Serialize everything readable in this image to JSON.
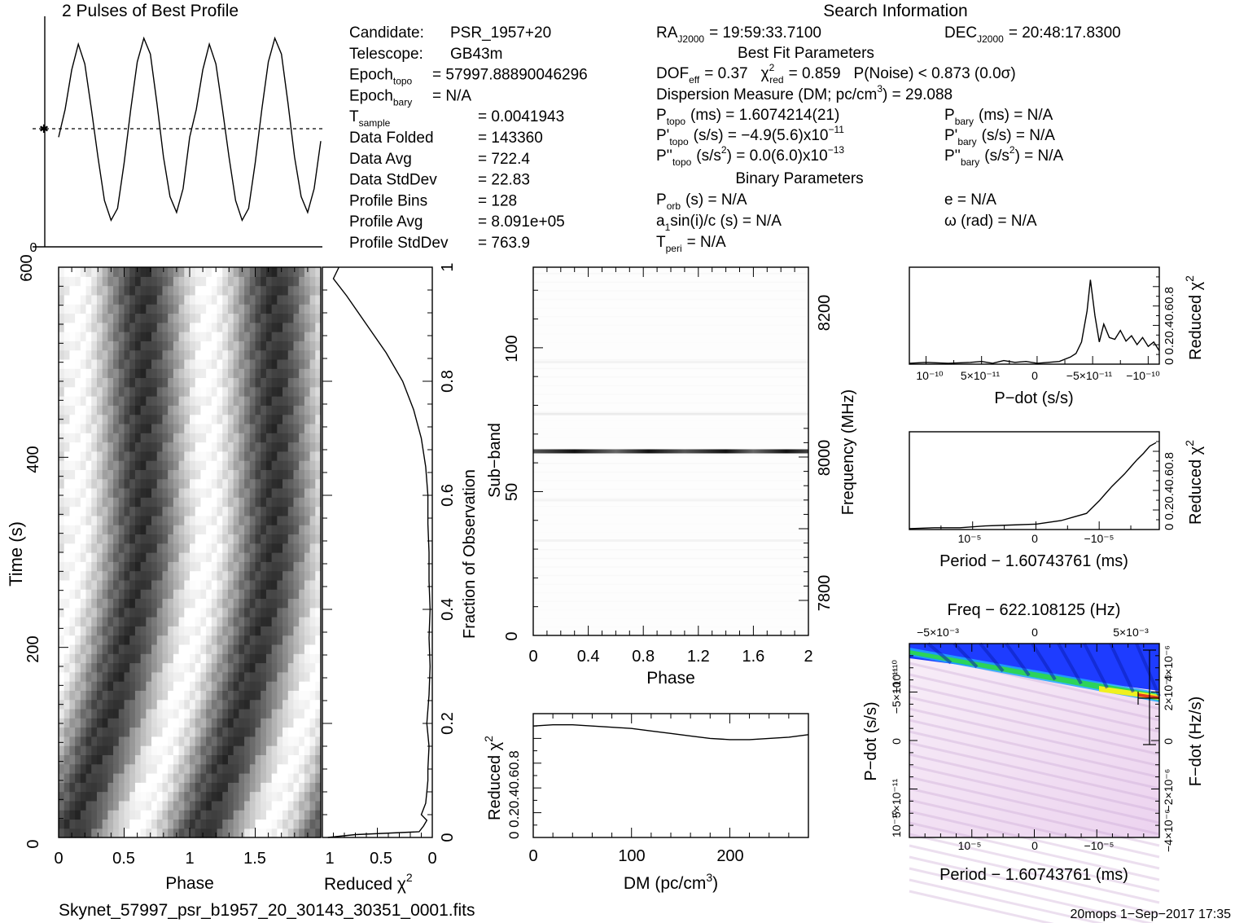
{
  "header": {
    "profile_title": "2 Pulses of Best Profile",
    "search_title": "Search Information",
    "best_fit_title": "Best Fit Parameters",
    "binary_title": "Binary Parameters"
  },
  "info_left": [
    {
      "key": "Candidate:",
      "val": "PSR_1957+20"
    },
    {
      "key": "Telescope:",
      "val": "GB43m"
    },
    {
      "key": "Epoch",
      "sub": "topo",
      "val": "= 57997.88890046296"
    },
    {
      "key": "Epoch",
      "sub": "bary",
      "val": "= N/A"
    },
    {
      "key": "T",
      "sub": "sample",
      "val": "=   0.0041943"
    },
    {
      "key": "Data Folded",
      "val": "=   143360"
    },
    {
      "key": "Data Avg",
      "val": "=   722.4"
    },
    {
      "key": "Data StdDev",
      "val": "=   22.83"
    },
    {
      "key": "Profile Bins",
      "val": "=   128"
    },
    {
      "key": "Profile Avg",
      "val": "=   8.091e+05"
    },
    {
      "key": "Profile StdDev",
      "val": "=   763.9"
    }
  ],
  "info_mid": {
    "ra": "RA",
    "ra_sub": "J2000",
    "ra_val": "= 19:59:33.7100",
    "dof": "DOF",
    "dof_sub": "eff",
    "dof_val": "= 0.37",
    "chi": "χ",
    "chi_sup": "2",
    "chi_sub": "red",
    "chi_val": "= 0.859",
    "pnoise": "P(Noise) < 0.873   (0.0σ)",
    "dm_line": "Dispersion Measure (DM; pc/cm",
    "dm_sup": "3",
    "dm_end": ") = 29.088",
    "ptopo": "P",
    "ptopo_sub": "topo",
    "ptopo_val": "(ms) =   1.6074214(21)",
    "pdtopo": "P'",
    "pdtopo_sub": "topo",
    "pdtopo_val": "(s/s) = −4.9(5.6)x10",
    "pdtopo_exp": "−11",
    "pddtopo": "P''",
    "pddtopo_sub": "topo",
    "pddtopo_val": "(s/s",
    "pddtopo_sup": "2",
    "pddtopo_val2": ") = 0.0(6.0)x10",
    "pddtopo_exp": "−13",
    "porb": "P",
    "porb_sub": "orb",
    "porb_val": "(s) = N/A",
    "asini": "a",
    "asini_sub": "1",
    "asini_val": "sin(i)/c (s) = N/A",
    "tperi": "T",
    "tperi_sub": "peri",
    "tperi_val": "= N/A"
  },
  "info_right": {
    "dec": "DEC",
    "dec_sub": "J2000",
    "dec_val": "= 20:48:17.8300",
    "pbary": "P",
    "pbary_sub": "bary",
    "pbary_val": "(ms) = N/A",
    "pdbary": "P'",
    "pdbary_sub": "bary",
    "pdbary_val": "(s/s) = N/A",
    "pddbary": "P''",
    "pddbary_sub": "bary",
    "pddbary_val": "(s/s",
    "pddbary_sup": "2",
    "pddbary_val2": ") = N/A",
    "ecc": "e = N/A",
    "omega": "ω (rad) = N/A"
  },
  "footer": {
    "filename": "Skynet_57997_psr_b1957_20_30143_30351_0001.fits",
    "stamp": "20mops   1−Sep−2017 17:35"
  },
  "labels": {
    "time": "Time (s)",
    "phase": "Phase",
    "reduced_chi": "Reduced χ",
    "chi_sup": "2",
    "fraction": "Fraction of Observation",
    "subband": "Sub−band",
    "frequency": "Frequency (MHz)",
    "dm": "DM (pc/cm",
    "dm_sup": "3",
    "dm_close": ")",
    "pdot": "P−dot (s/s)",
    "period": "Period − 1.60743761 (ms)",
    "freq_top": "Freq − 622.108125 (Hz)",
    "fdot": "F−dot (Hz/s)",
    "top_left_zero": "0"
  },
  "ticks": {
    "time_y": [
      "0",
      "200",
      "400",
      "600"
    ],
    "phase_x": [
      "0",
      "0.5",
      "1",
      "1.5"
    ],
    "redchi_x": [
      "1",
      "0.5",
      "0"
    ],
    "fraction_y": [
      "0",
      "0.2",
      "0.4",
      "0.6",
      "0.8",
      "1"
    ],
    "subband_y": [
      "0",
      "50",
      "100"
    ],
    "freq_y": [
      "7800",
      "8000",
      "8200"
    ],
    "phase2_x": [
      "0",
      "0.4",
      "0.8",
      "1.2",
      "1.6",
      "2"
    ],
    "dm_x": [
      "0",
      "100",
      "200"
    ],
    "chi_y_dm": "0 0.20.40.60.8",
    "chi_y_small": "0 0.20.40.60.8",
    "pdot_x": [
      "10⁻¹⁰",
      "5×10⁻¹¹",
      "0",
      "−5×10⁻¹¹",
      "−10⁻¹⁰"
    ],
    "period_x": [
      "10⁻⁵",
      "0",
      "−10⁻⁵"
    ],
    "freq_x": [
      "−5×10⁻³",
      "0",
      "5×10⁻³"
    ],
    "pdot_y": [
      "10⁻¹⁰",
      "5×10⁻¹¹",
      "0",
      "−5×10⁻¹¹",
      "−10⁻¹⁰"
    ],
    "fdot_y": [
      "−4×10⁻⁶",
      "−2×10⁻⁶",
      "0",
      "2×10⁻⁶",
      "4×10⁻⁶"
    ]
  },
  "colors": {
    "ink": "#000000",
    "heat_low": "#f4e2f4",
    "heat_blue": "#1e3cff",
    "heat_green": "#2cd35a",
    "heat_yellow": "#f0f01e",
    "heat_red": "#e23c1e"
  },
  "chart_data": [
    {
      "type": "line",
      "title": "2 Pulses of Best Profile",
      "x": [
        0,
        0.05,
        0.1,
        0.15,
        0.2,
        0.25,
        0.3,
        0.35,
        0.4,
        0.45,
        0.5,
        0.55,
        0.6,
        0.65,
        0.7,
        0.75,
        0.8,
        0.85,
        0.9,
        0.95,
        1.0,
        1.05,
        1.1,
        1.15,
        1.2,
        1.25,
        1.3,
        1.35,
        1.4,
        1.45,
        1.5,
        1.55,
        1.6,
        1.65,
        1.7,
        1.75,
        1.8,
        1.85,
        1.9,
        1.95,
        2.0
      ],
      "values": [
        0.48,
        0.62,
        0.82,
        0.95,
        0.85,
        0.62,
        0.38,
        0.16,
        0.06,
        0.12,
        0.35,
        0.62,
        0.86,
        0.98,
        0.9,
        0.65,
        0.38,
        0.18,
        0.1,
        0.22,
        0.48,
        0.62,
        0.82,
        0.95,
        0.85,
        0.62,
        0.38,
        0.16,
        0.06,
        0.12,
        0.35,
        0.62,
        0.86,
        0.98,
        0.9,
        0.65,
        0.38,
        0.18,
        0.1,
        0.22,
        0.46
      ],
      "avg_level": 0.55
    },
    {
      "type": "heatmap",
      "xlabel": "Phase",
      "ylabel": "Time (s)",
      "xlim": [
        0,
        2
      ],
      "ylim": [
        0,
        601
      ],
      "note_drift": [
        0.35,
        0.2,
        0.08,
        0.0,
        -0.02,
        0.0,
        0.05
      ]
    },
    {
      "type": "line",
      "xlabel": "Reduced χ2",
      "ylabel": "Fraction of Observation",
      "xlim": [
        1,
        0
      ],
      "ylim": [
        0,
        1
      ],
      "y": [
        0,
        0.005,
        0.01,
        0.02,
        0.03,
        0.04,
        0.06,
        0.08,
        0.1,
        0.12,
        0.16,
        0.2,
        0.25,
        0.3,
        0.35,
        0.4,
        0.45,
        0.5,
        0.55,
        0.6,
        0.65,
        0.7,
        0.75,
        0.8,
        0.85,
        0.9,
        0.95,
        0.98,
        1.0
      ],
      "values": [
        0.95,
        0.7,
        0.12,
        0.08,
        0.05,
        0.1,
        0.06,
        0.05,
        0.04,
        0.04,
        0.03,
        0.05,
        0.03,
        0.02,
        0.03,
        0.02,
        0.03,
        0.03,
        0.04,
        0.04,
        0.06,
        0.1,
        0.17,
        0.27,
        0.42,
        0.6,
        0.78,
        0.9,
        0.85
      ]
    },
    {
      "type": "heatmap",
      "xlabel": "Phase",
      "ylabel": "Sub−band",
      "y2label": "Frequency (MHz)",
      "xlim": [
        0,
        2
      ],
      "ylim": [
        0,
        128
      ],
      "strong_band": 64,
      "weak_bands": [
        77,
        47,
        95,
        33
      ]
    },
    {
      "type": "line",
      "xlabel": "DM (pc/cm3)",
      "ylabel": "Reduced χ2",
      "xlim": [
        0,
        280
      ],
      "ylim": [
        0,
        1
      ],
      "x": [
        0,
        20,
        40,
        60,
        80,
        100,
        120,
        140,
        160,
        180,
        200,
        220,
        240,
        260,
        280
      ],
      "values": [
        0.9,
        0.91,
        0.91,
        0.9,
        0.89,
        0.88,
        0.86,
        0.84,
        0.82,
        0.8,
        0.79,
        0.79,
        0.8,
        0.81,
        0.83
      ]
    },
    {
      "type": "line",
      "xlabel": "P−dot (s/s)",
      "ylabel": "Reduced χ2",
      "xlim": [
        1.15e-10,
        -1.1e-10
      ],
      "ylim": [
        0,
        1
      ],
      "x": [
        1.15e-10,
        1e-10,
        8e-11,
        6e-11,
        5e-11,
        4e-11,
        3e-11,
        2e-11,
        1e-11,
        0,
        -1e-11,
        -2e-11,
        -3e-11,
        -3.5e-11,
        -4e-11,
        -4.5e-11,
        -4.8e-11,
        -5.2e-11,
        -5.6e-11,
        -6e-11,
        -6.5e-11,
        -7e-11,
        -7.5e-11,
        -8e-11,
        -8.5e-11,
        -9e-11,
        -9.5e-11,
        -1e-10,
        -1.05e-10,
        -1.1e-10
      ],
      "values": [
        0.01,
        0.02,
        0.01,
        0.02,
        0.03,
        0.01,
        0.04,
        0.02,
        0.03,
        0.01,
        0.02,
        0.03,
        0.08,
        0.12,
        0.25,
        0.6,
        0.95,
        0.55,
        0.25,
        0.45,
        0.3,
        0.28,
        0.38,
        0.26,
        0.32,
        0.22,
        0.3,
        0.2,
        0.25,
        0.15
      ]
    },
    {
      "type": "line",
      "xlabel": "Period − 1.60743761 (ms)",
      "ylabel": "Reduced χ2",
      "xlim": [
        2e-05,
        -1.95e-05
      ],
      "ylim": [
        0,
        1
      ],
      "x": [
        2e-05,
        1.6e-05,
        1.2e-05,
        8e-06,
        4e-06,
        0,
        -2e-06,
        -4e-06,
        -6e-06,
        -8e-06,
        -9e-06,
        -1e-05,
        -1.1e-05,
        -1.2e-05,
        -1.3e-05,
        -1.4e-05,
        -1.5e-05,
        -1.6e-05,
        -1.7e-05,
        -1.8e-05,
        -1.9e-05
      ],
      "values": [
        0.01,
        0.02,
        0.02,
        0.04,
        0.05,
        0.06,
        0.08,
        0.1,
        0.14,
        0.18,
        0.25,
        0.32,
        0.4,
        0.48,
        0.55,
        0.62,
        0.7,
        0.78,
        0.85,
        0.93,
        0.97
      ]
    },
    {
      "type": "heatmap",
      "xlabel": "Period − 1.60743761 (ms)",
      "ylabel": "P−dot (s/s)",
      "x2label": "Freq − 622.108125 (Hz)",
      "y2label": "F−dot (Hz/s)",
      "xlim": [
        2e-05,
        -1.95e-05
      ],
      "ylim": [
        1.2e-10,
        -1.1e-10
      ]
    }
  ]
}
